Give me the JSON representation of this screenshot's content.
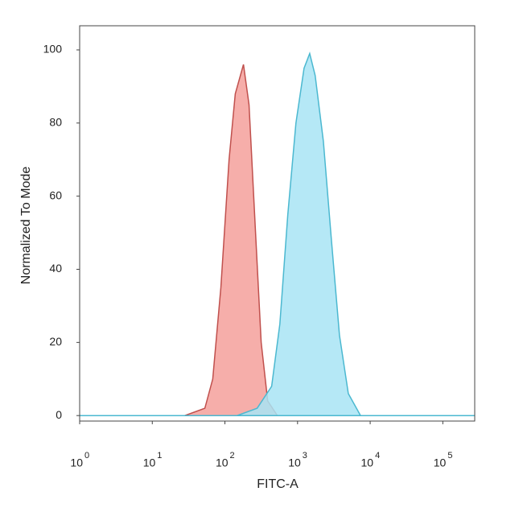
{
  "chart_data": {
    "type": "area",
    "xlabel": "FITC-A",
    "ylabel": "Normalized To Mode",
    "xscale": "log",
    "xlim": [
      1,
      275000
    ],
    "ylim": [
      -1.5,
      106.6
    ],
    "xticks": [
      {
        "value": 1,
        "label": "10",
        "exponent": "0"
      },
      {
        "value": 10,
        "label": "10",
        "exponent": "1"
      },
      {
        "value": 100,
        "label": "10",
        "exponent": "2"
      },
      {
        "value": 1000,
        "label": "10",
        "exponent": "3"
      },
      {
        "value": 10000,
        "label": "10",
        "exponent": "4"
      },
      {
        "value": 100000,
        "label": "10",
        "exponent": "5"
      }
    ],
    "yticks": [
      0,
      20,
      40,
      60,
      80,
      100
    ],
    "series": [
      {
        "color": "#f4a09b",
        "stroke": "#c0504d",
        "x": [
          1,
          28,
          53,
          68,
          88,
          114,
          139,
          180,
          215,
          264,
          316,
          388,
          527,
          275000
        ],
        "y": [
          0,
          0,
          2,
          10,
          35,
          70,
          88,
          96,
          85,
          50,
          20,
          4,
          0,
          0
        ]
      },
      {
        "color": "#a8e4f5",
        "stroke": "#4bb8d0",
        "x": [
          1,
          147,
          278,
          440,
          570,
          735,
          950,
          1230,
          1470,
          1750,
          2270,
          2930,
          3780,
          5000,
          7360,
          275000
        ],
        "y": [
          0,
          0,
          2,
          8,
          25,
          55,
          80,
          95,
          99,
          93,
          75,
          48,
          22,
          6,
          0,
          0
        ]
      }
    ]
  }
}
